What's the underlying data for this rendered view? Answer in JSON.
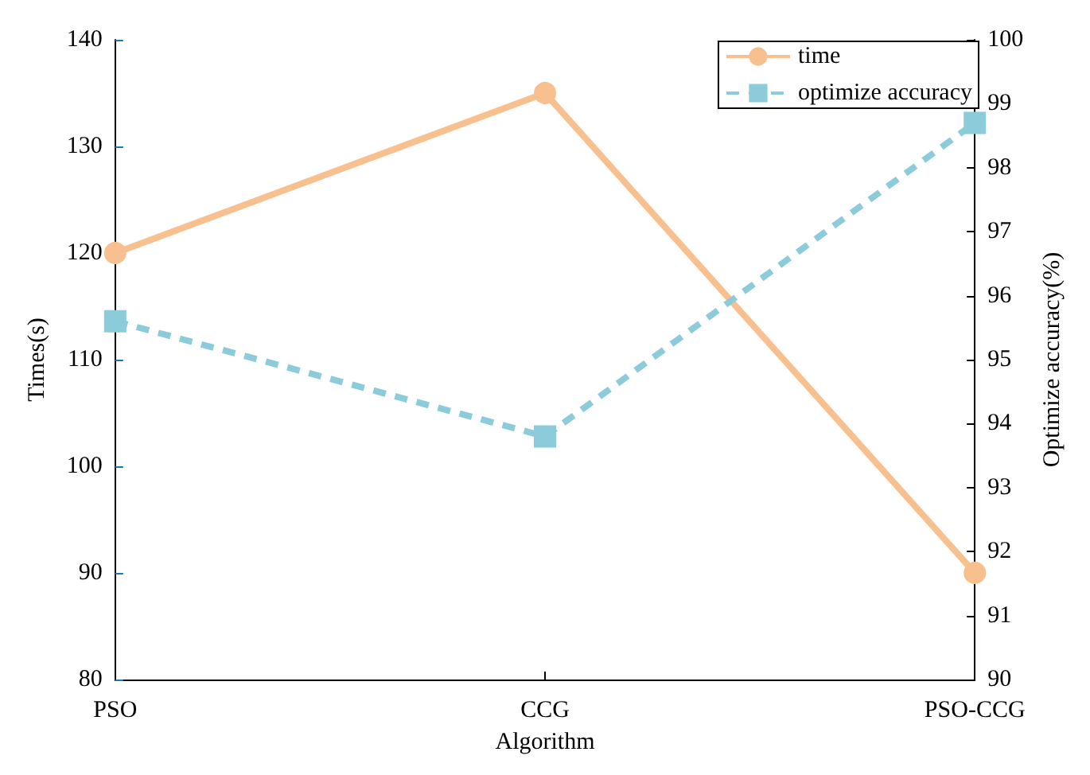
{
  "chart_data": {
    "type": "line",
    "xlabel": "Algorithm",
    "ylabel": "Times(s)",
    "y2label": "Optimize accuracy(%)",
    "categories": [
      "PSO",
      "CCG",
      "PSO-CCG"
    ],
    "series": [
      {
        "name": "time",
        "color": "#f8c08f",
        "values": [
          120,
          135,
          90
        ],
        "marker": "circle",
        "line_style": "solid"
      },
      {
        "name": "optimize accuracy",
        "color": "#8ccbd9",
        "values": [
          95.6,
          93.8,
          98.7
        ],
        "axis": "y2",
        "marker": "square",
        "line_style": "dashed"
      }
    ],
    "ylim": [
      80,
      140
    ],
    "yticks": [
      80,
      90,
      100,
      110,
      120,
      130,
      140
    ],
    "y2lim": [
      90,
      100
    ],
    "y2ticks": [
      90,
      91,
      92,
      93,
      94,
      95,
      96,
      97,
      98,
      99,
      100
    ],
    "legend": "top right",
    "grid": false
  }
}
